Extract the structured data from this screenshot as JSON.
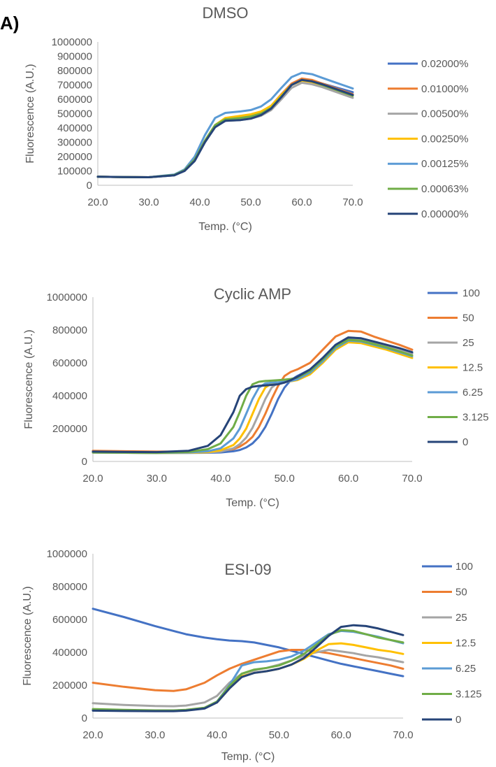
{
  "panel_label": "A)",
  "chart_data": [
    {
      "type": "line",
      "title": "DMSO",
      "xlabel": "Temp. (°C)",
      "ylabel": "Fluorescence (A.U.)",
      "xlim": [
        20,
        70
      ],
      "ylim": [
        0,
        1000000
      ],
      "x_ticks": [
        "20.0",
        "30.0",
        "40.0",
        "50.0",
        "60.0",
        "70.0"
      ],
      "y_ticks": [
        "0",
        "100000",
        "200000",
        "300000",
        "400000",
        "500000",
        "600000",
        "700000",
        "800000",
        "900000",
        "1000000"
      ],
      "x": [
        20,
        25,
        30,
        35,
        37,
        39,
        41,
        43,
        45,
        48,
        50,
        52,
        54,
        56,
        58,
        60,
        62,
        64,
        66,
        68,
        70
      ],
      "series": [
        {
          "name": "0.02000%",
          "color": "#4472C4",
          "values": [
            60000,
            57000,
            56000,
            70000,
            100000,
            170000,
            300000,
            410000,
            450000,
            460000,
            470000,
            495000,
            540000,
            620000,
            700000,
            740000,
            730000,
            710000,
            690000,
            670000,
            650000
          ]
        },
        {
          "name": "0.01000%",
          "color": "#ED7D31",
          "values": [
            60000,
            57000,
            56000,
            72000,
            105000,
            180000,
            310000,
            420000,
            465000,
            480000,
            490000,
            510000,
            555000,
            635000,
            710000,
            745000,
            735000,
            710000,
            685000,
            660000,
            635000
          ]
        },
        {
          "name": "0.00500%",
          "color": "#A5A5A5",
          "values": [
            60000,
            57000,
            56000,
            70000,
            100000,
            170000,
            300000,
            410000,
            450000,
            455000,
            465000,
            485000,
            525000,
            600000,
            680000,
            715000,
            705000,
            685000,
            660000,
            635000,
            610000
          ]
        },
        {
          "name": "0.00250%",
          "color": "#FFC000",
          "values": [
            60000,
            57000,
            56000,
            72000,
            105000,
            180000,
            310000,
            420000,
            470000,
            485000,
            495000,
            515000,
            555000,
            630000,
            700000,
            730000,
            720000,
            700000,
            675000,
            650000,
            625000
          ]
        },
        {
          "name": "0.00125%",
          "color": "#5B9BD5",
          "values": [
            60000,
            57000,
            56000,
            75000,
            110000,
            200000,
            350000,
            470000,
            505000,
            515000,
            525000,
            550000,
            600000,
            680000,
            755000,
            785000,
            775000,
            750000,
            725000,
            700000,
            675000
          ]
        },
        {
          "name": "0.00063%",
          "color": "#70AD47",
          "values": [
            60000,
            57000,
            56000,
            72000,
            105000,
            180000,
            310000,
            420000,
            460000,
            470000,
            480000,
            500000,
            540000,
            620000,
            700000,
            735000,
            725000,
            700000,
            675000,
            650000,
            625000
          ]
        },
        {
          "name": "0.00000%",
          "color": "#264478",
          "values": [
            60000,
            57000,
            56000,
            70000,
            100000,
            170000,
            300000,
            405000,
            450000,
            455000,
            465000,
            490000,
            535000,
            615000,
            700000,
            735000,
            725000,
            705000,
            680000,
            655000,
            630000
          ]
        }
      ]
    },
    {
      "type": "line",
      "title": "Cyclic AMP",
      "xlabel": "Temp. (°C)",
      "ylabel": "Fluorescence (A.U.)",
      "xlim": [
        20,
        70
      ],
      "ylim": [
        0,
        1000000
      ],
      "x_ticks": [
        "20.0",
        "30.0",
        "40.0",
        "50.0",
        "60.0",
        "70.0"
      ],
      "y_ticks": [
        "0",
        "200000",
        "400000",
        "600000",
        "800000",
        "1000000"
      ],
      "x": [
        20,
        25,
        30,
        35,
        38,
        40,
        42,
        43,
        44,
        45,
        46,
        47,
        48,
        49,
        50,
        51,
        52,
        54,
        56,
        58,
        60,
        62,
        64,
        66,
        68,
        70
      ],
      "series": [
        {
          "name": "100",
          "color": "#4472C4",
          "values": [
            55000,
            53000,
            52000,
            52000,
            53000,
            55000,
            62000,
            70000,
            85000,
            110000,
            150000,
            210000,
            290000,
            380000,
            450000,
            495000,
            520000,
            560000,
            620000,
            700000,
            745000,
            740000,
            720000,
            700000,
            680000,
            660000
          ]
        },
        {
          "name": "50",
          "color": "#ED7D31",
          "values": [
            65000,
            62000,
            60000,
            60000,
            62000,
            65000,
            75000,
            90000,
            115000,
            150000,
            210000,
            290000,
            380000,
            460000,
            520000,
            545000,
            560000,
            600000,
            680000,
            760000,
            795000,
            790000,
            760000,
            735000,
            710000,
            680000
          ]
        },
        {
          "name": "25",
          "color": "#A5A5A5",
          "values": [
            55000,
            53000,
            52000,
            53000,
            55000,
            60000,
            80000,
            105000,
            145000,
            205000,
            290000,
            380000,
            450000,
            480000,
            490000,
            495000,
            505000,
            545000,
            610000,
            690000,
            740000,
            740000,
            720000,
            700000,
            680000,
            655000
          ]
        },
        {
          "name": "12.5",
          "color": "#FFC000",
          "values": [
            55000,
            53000,
            52000,
            53000,
            57000,
            68000,
            100000,
            140000,
            200000,
            290000,
            380000,
            450000,
            475000,
            480000,
            485000,
            488000,
            495000,
            530000,
            600000,
            680000,
            725000,
            720000,
            700000,
            680000,
            655000,
            630000
          ]
        },
        {
          "name": "6.25",
          "color": "#5B9BD5",
          "values": [
            55000,
            53000,
            52000,
            55000,
            62000,
            80000,
            140000,
            200000,
            290000,
            380000,
            450000,
            475000,
            480000,
            482000,
            485000,
            490000,
            500000,
            540000,
            610000,
            690000,
            735000,
            730000,
            710000,
            690000,
            665000,
            640000
          ]
        },
        {
          "name": "3.125",
          "color": "#70AD47",
          "values": [
            55000,
            53000,
            52000,
            58000,
            75000,
            110000,
            210000,
            300000,
            400000,
            470000,
            485000,
            490000,
            492000,
            495000,
            498000,
            502000,
            510000,
            550000,
            620000,
            700000,
            740000,
            735000,
            715000,
            695000,
            670000,
            645000
          ]
        },
        {
          "name": "0",
          "color": "#264478",
          "values": [
            60000,
            58000,
            57000,
            65000,
            95000,
            160000,
            300000,
            400000,
            440000,
            455000,
            460000,
            463000,
            466000,
            470000,
            480000,
            495000,
            515000,
            560000,
            630000,
            710000,
            755000,
            750000,
            730000,
            710000,
            690000,
            665000
          ]
        }
      ]
    },
    {
      "type": "line",
      "title": "ESI-09",
      "xlabel": "Temp. (°C)",
      "ylabel": "Fluorescence (A.U.)",
      "xlim": [
        20,
        70
      ],
      "ylim": [
        0,
        1000000
      ],
      "x_ticks": [
        "20.0",
        "30.0",
        "40.0",
        "50.0",
        "60.0",
        "70.0"
      ],
      "y_ticks": [
        "0",
        "200000",
        "400000",
        "600000",
        "800000",
        "1000000"
      ],
      "x": [
        20,
        25,
        30,
        33,
        35,
        38,
        40,
        42,
        44,
        46,
        48,
        50,
        52,
        54,
        56,
        58,
        60,
        62,
        64,
        66,
        68,
        70
      ],
      "series": [
        {
          "name": "100",
          "color": "#4472C4",
          "values": [
            665000,
            615000,
            560000,
            530000,
            510000,
            490000,
            480000,
            472000,
            468000,
            460000,
            445000,
            430000,
            410000,
            390000,
            370000,
            350000,
            330000,
            315000,
            300000,
            285000,
            270000,
            255000
          ]
        },
        {
          "name": "50",
          "color": "#ED7D31",
          "values": [
            215000,
            190000,
            170000,
            165000,
            175000,
            215000,
            260000,
            300000,
            330000,
            355000,
            380000,
            405000,
            415000,
            415000,
            405000,
            395000,
            380000,
            365000,
            350000,
            335000,
            320000,
            300000
          ]
        },
        {
          "name": "25",
          "color": "#A5A5A5",
          "values": [
            90000,
            80000,
            73000,
            72000,
            76000,
            95000,
            135000,
            215000,
            270000,
            290000,
            305000,
            325000,
            350000,
            380000,
            400000,
            415000,
            405000,
            395000,
            380000,
            370000,
            355000,
            340000
          ]
        },
        {
          "name": "12.5",
          "color": "#FFC000",
          "values": [
            50000,
            47000,
            45000,
            45000,
            48000,
            60000,
            95000,
            180000,
            255000,
            275000,
            285000,
            300000,
            325000,
            360000,
            410000,
            450000,
            455000,
            445000,
            430000,
            415000,
            405000,
            390000
          ]
        },
        {
          "name": "6.25",
          "color": "#5B9BD5",
          "values": [
            50000,
            47000,
            45000,
            45000,
            48000,
            62000,
            100000,
            200000,
            320000,
            340000,
            345000,
            355000,
            375000,
            410000,
            460000,
            510000,
            530000,
            525000,
            510000,
            495000,
            475000,
            455000
          ]
        },
        {
          "name": "3.125",
          "color": "#70AD47",
          "values": [
            55000,
            50000,
            47000,
            47000,
            50000,
            63000,
            100000,
            195000,
            270000,
            295000,
            305000,
            320000,
            350000,
            390000,
            445000,
            505000,
            535000,
            530000,
            510000,
            490000,
            475000,
            460000
          ]
        },
        {
          "name": "0",
          "color": "#264478",
          "values": [
            45000,
            43000,
            42000,
            42000,
            45000,
            58000,
            95000,
            180000,
            250000,
            275000,
            285000,
            300000,
            325000,
            365000,
            430000,
            500000,
            555000,
            565000,
            560000,
            545000,
            525000,
            505000
          ]
        }
      ]
    }
  ]
}
